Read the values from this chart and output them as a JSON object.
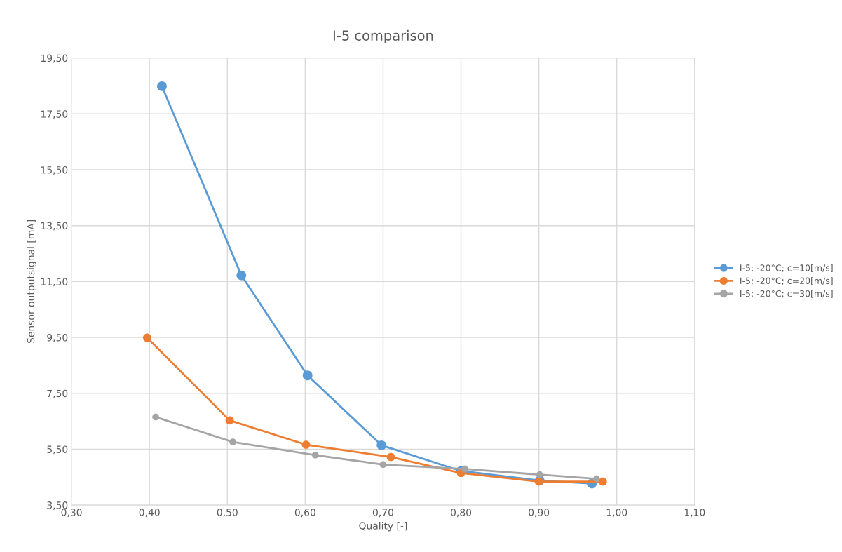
{
  "chart_data": {
    "type": "line",
    "title": "I-5 comparison",
    "xlabel": "Quality [-]",
    "ylabel": "Sensor outputsignal [mA]",
    "series": [
      {
        "name": "I-5; -20°C; c=10[m/s]",
        "color": "#5b9bd5",
        "x": [
          0.416,
          0.518,
          0.603,
          0.698,
          0.8,
          0.901,
          0.968
        ],
        "values": [
          18.49,
          11.72,
          8.14,
          5.64,
          4.72,
          4.38,
          4.27
        ]
      },
      {
        "name": "I-5; -20°C; c=20[m/s]",
        "color": "#ed7d31",
        "x": [
          0.397,
          0.503,
          0.601,
          0.71,
          0.8,
          0.9,
          0.982
        ],
        "values": [
          9.49,
          6.53,
          5.66,
          5.22,
          4.65,
          4.34,
          4.34
        ]
      },
      {
        "name": "I-5; -20°C; c=30[m/s]",
        "color": "#a5a5a5",
        "x": [
          0.408,
          0.507,
          0.613,
          0.7,
          0.805,
          0.901,
          0.974
        ],
        "values": [
          6.65,
          5.76,
          5.29,
          4.95,
          4.79,
          4.59,
          4.44
        ]
      }
    ],
    "xlim": [
      0.3,
      1.1
    ],
    "xticks": [
      {
        "value": 0.3,
        "label": "0,30"
      },
      {
        "value": 0.4,
        "label": "0,40"
      },
      {
        "value": 0.5,
        "label": "0,50"
      },
      {
        "value": 0.6,
        "label": "0,60"
      },
      {
        "value": 0.7,
        "label": "0,70"
      },
      {
        "value": 0.8,
        "label": "0,80"
      },
      {
        "value": 0.9,
        "label": "0,90"
      },
      {
        "value": 1.0,
        "label": "1,00"
      },
      {
        "value": 1.1,
        "label": "1,10"
      }
    ],
    "ylim": [
      3.5,
      19.5
    ],
    "yticks": [
      {
        "value": 3.5,
        "label": "3,50"
      },
      {
        "value": 5.5,
        "label": "5,50"
      },
      {
        "value": 7.5,
        "label": "7,50"
      },
      {
        "value": 9.5,
        "label": "9,50"
      },
      {
        "value": 11.5,
        "label": "11,50"
      },
      {
        "value": 13.5,
        "label": "13,50"
      },
      {
        "value": 15.5,
        "label": "15,50"
      },
      {
        "value": 17.5,
        "label": "17,50"
      },
      {
        "value": 19.5,
        "label": "19,50"
      }
    ],
    "grid": true,
    "legend": "right",
    "marker": "circle",
    "line_style": "solid"
  }
}
